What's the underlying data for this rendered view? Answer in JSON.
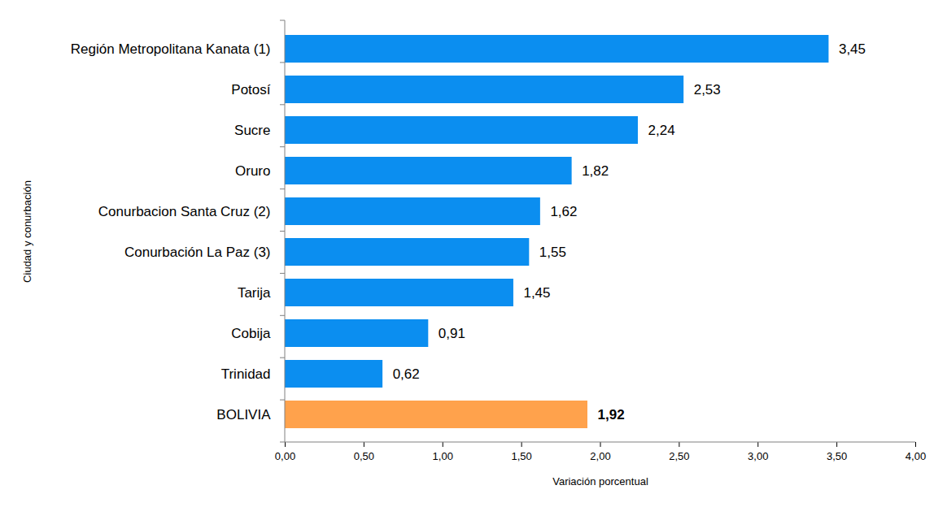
{
  "chart_data": {
    "type": "bar",
    "orientation": "horizontal",
    "categories": [
      "Región Metropolitana Kanata (1)",
      "Potosí",
      "Sucre",
      "Oruro",
      "Conurbacion Santa Cruz (2)",
      "Conurbación La Paz (3)",
      "Tarija",
      "Cobija",
      "Trinidad",
      "BOLIVIA"
    ],
    "values": [
      3.45,
      2.53,
      2.24,
      1.82,
      1.62,
      1.55,
      1.45,
      0.91,
      0.62,
      1.92
    ],
    "value_labels": [
      "3,45",
      "2,53",
      "2,24",
      "1,82",
      "1,62",
      "1,55",
      "1,45",
      "0,91",
      "0,62",
      "1,92"
    ],
    "colors": [
      "#0b8ef0",
      "#0b8ef0",
      "#0b8ef0",
      "#0b8ef0",
      "#0b8ef0",
      "#0b8ef0",
      "#0b8ef0",
      "#0b8ef0",
      "#0b8ef0",
      "#ffa24c"
    ],
    "x_label": "Variación porcentual",
    "y_label": "Ciudad y conurbación",
    "xlim": [
      0,
      4
    ],
    "xticks": [
      {
        "value": 0,
        "label": "0,00"
      },
      {
        "value": 0.5,
        "label": "0,50"
      },
      {
        "value": 1,
        "label": "1,00"
      },
      {
        "value": 1.5,
        "label": "1,50"
      },
      {
        "value": 2,
        "label": "2,00"
      },
      {
        "value": 2.5,
        "label": "2,50"
      },
      {
        "value": 3,
        "label": "3,00"
      },
      {
        "value": 3.5,
        "label": "3,50"
      },
      {
        "value": 4,
        "label": "4,00"
      }
    ],
    "grid": false,
    "data_labels": true
  }
}
